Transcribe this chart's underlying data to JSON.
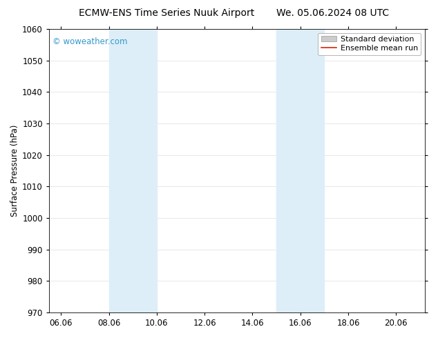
{
  "title_left": "ECMW-ENS Time Series Nuuk Airport",
  "title_right": "We. 05.06.2024 08 UTC",
  "ylabel": "Surface Pressure (hPa)",
  "watermark": "© woweather.com",
  "watermark_color": "#3399cc",
  "ylim": [
    970,
    1060
  ],
  "yticks": [
    970,
    980,
    990,
    1000,
    1010,
    1020,
    1030,
    1040,
    1050,
    1060
  ],
  "xlim_start": 5.5,
  "xlim_end": 21.2,
  "xtick_labels": [
    "06.06",
    "08.06",
    "10.06",
    "12.06",
    "14.06",
    "16.06",
    "18.06",
    "20.06"
  ],
  "xtick_positions": [
    6.0,
    8.0,
    10.0,
    12.0,
    14.0,
    16.0,
    18.0,
    20.0
  ],
  "shade_bands": [
    {
      "x_start": 8.0,
      "x_end": 10.0
    },
    {
      "x_start": 15.0,
      "x_end": 17.0
    }
  ],
  "shade_color": "#ddeef8",
  "background_color": "#ffffff",
  "grid_color": "#dddddd",
  "title_fontsize": 10,
  "tick_fontsize": 8.5,
  "ylabel_fontsize": 8.5,
  "legend_fontsize": 8,
  "std_legend_color": "#cccccc",
  "mean_legend_color": "#dd2200"
}
